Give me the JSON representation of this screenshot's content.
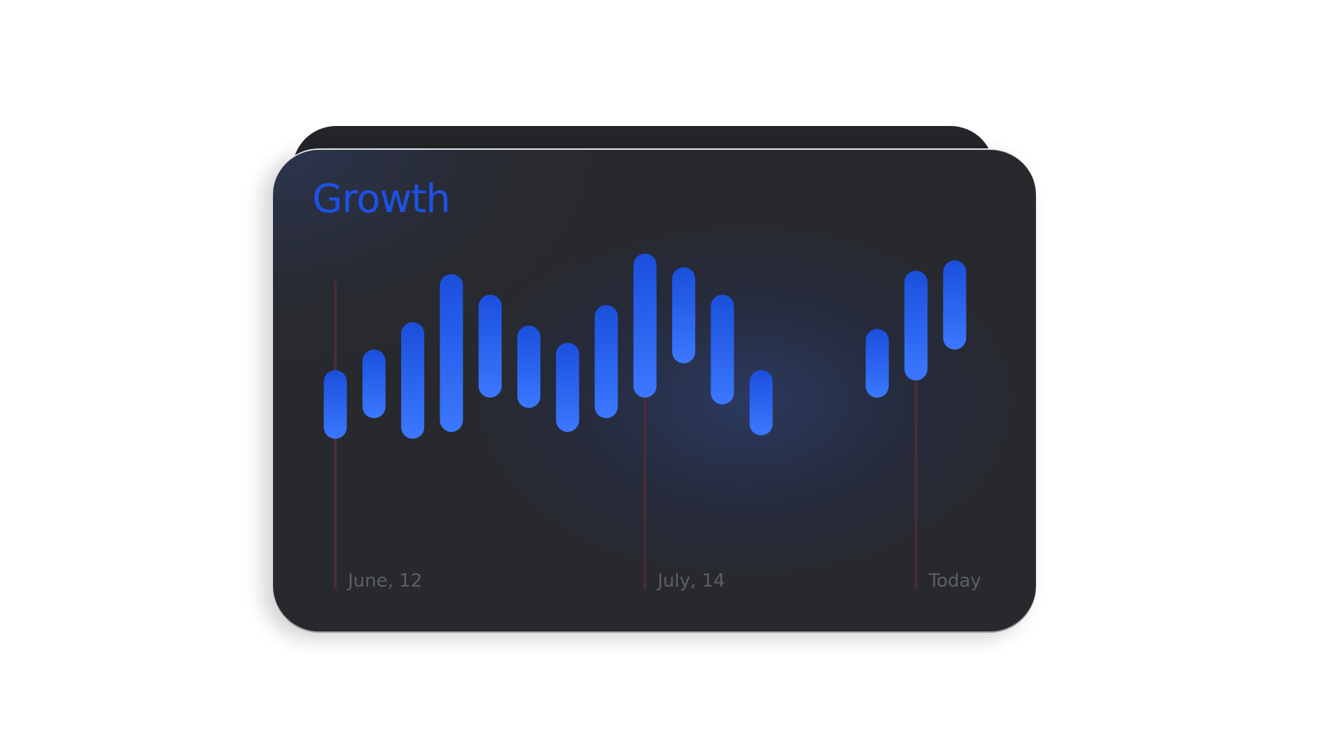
{
  "chart_data": {
    "type": "bar",
    "title": "Growth",
    "xlabel": "",
    "ylabel": "",
    "ylim": [
      0,
      100
    ],
    "grid": false,
    "markers": [
      {
        "label": "June, 12",
        "slot": 0
      },
      {
        "label": "July, 14",
        "slot": 8
      },
      {
        "label": "Today",
        "slot": 15
      }
    ],
    "series": [
      {
        "ranges": [
          {
            "slot": 0,
            "low": 28,
            "high": 48
          },
          {
            "slot": 1,
            "low": 34,
            "high": 54
          },
          {
            "slot": 2,
            "low": 28,
            "high": 62
          },
          {
            "slot": 3,
            "low": 30,
            "high": 76
          },
          {
            "slot": 4,
            "low": 40,
            "high": 70
          },
          {
            "slot": 5,
            "low": 37,
            "high": 61
          },
          {
            "slot": 6,
            "low": 30,
            "high": 56
          },
          {
            "slot": 7,
            "low": 34,
            "high": 67
          },
          {
            "slot": 8,
            "low": 40,
            "high": 82
          },
          {
            "slot": 9,
            "low": 50,
            "high": 78
          },
          {
            "slot": 10,
            "low": 38,
            "high": 70
          },
          {
            "slot": 11,
            "low": 29,
            "high": 48
          },
          {
            "slot": 14,
            "low": 40,
            "high": 60
          },
          {
            "slot": 15,
            "low": 45,
            "high": 77
          },
          {
            "slot": 16,
            "low": 54,
            "high": 80
          }
        ]
      }
    ],
    "colors": {
      "bar_top": "#1a4fdc",
      "bar_bottom": "#3b78ff",
      "marker_line": "#4a2c34",
      "label": "#5c5f66",
      "title": "#1d52e6"
    }
  }
}
